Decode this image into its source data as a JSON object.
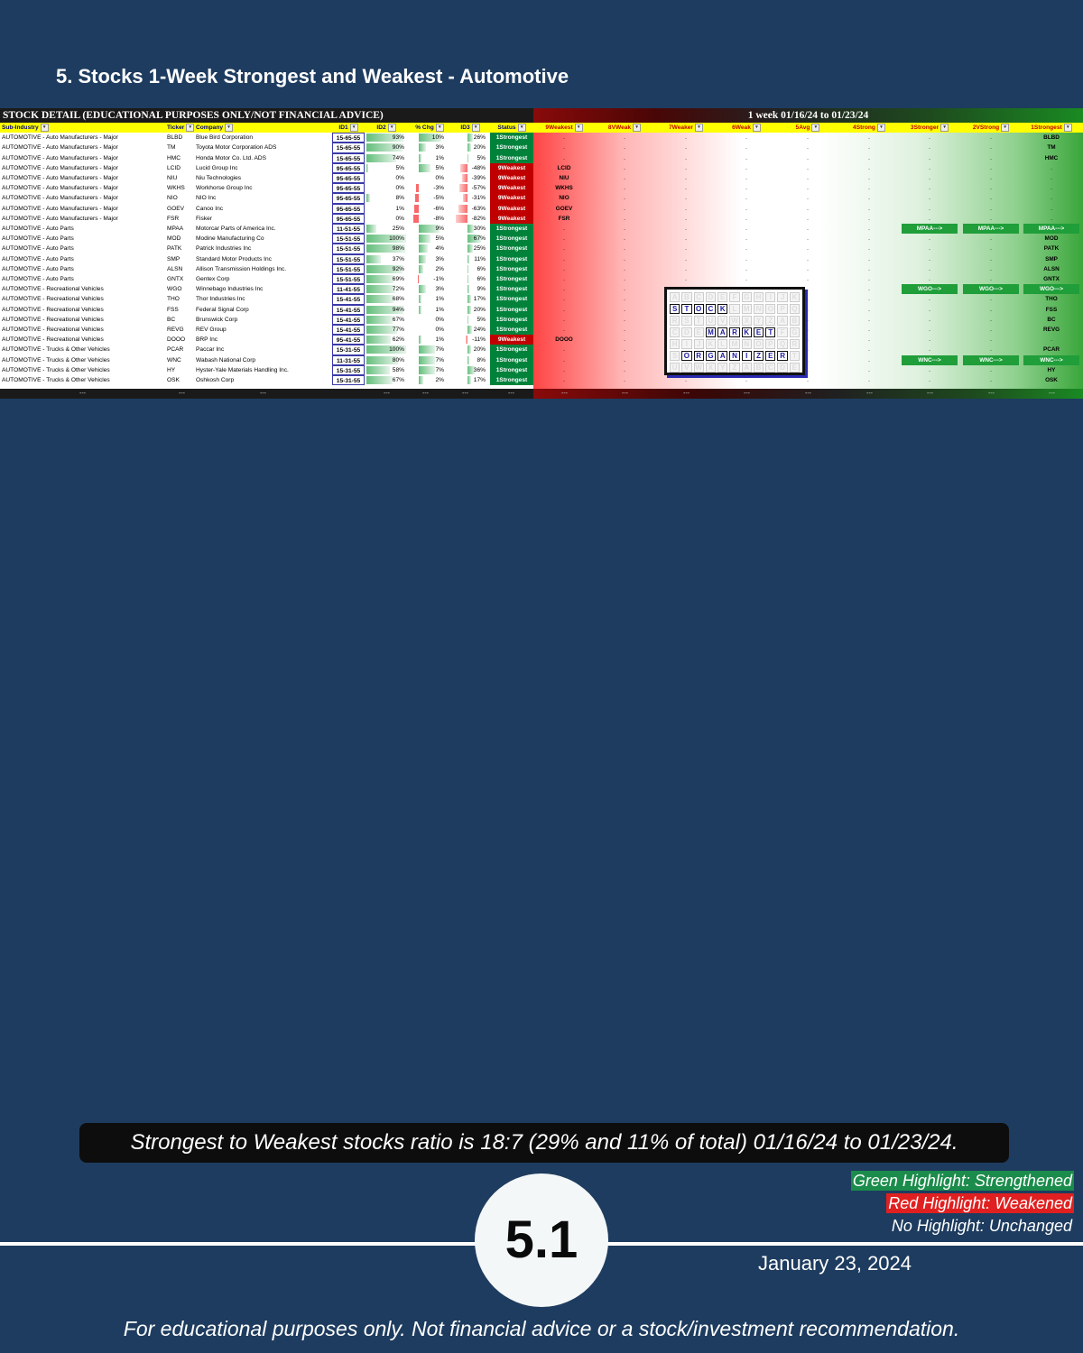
{
  "page_title": "5. Stocks 1-Week Strongest and Weakest - Automotive",
  "sheet": {
    "left_banner": "STOCK DETAIL (EDUCATIONAL PURPOSES ONLY/NOT FINANCIAL ADVICE)",
    "right_banner": "1 week 01/16/24 to 01/23/24",
    "headers": {
      "sub_industry": "Sub-Industry",
      "ticker": "Ticker",
      "company": "Company",
      "id1": "ID1",
      "id2": "ID2",
      "pct_chg": "% Chg",
      "id3": "ID3",
      "status": "Status",
      "groups": [
        "9Weakest",
        "8VWeak",
        "7Weaker",
        "6Weak",
        "5Avg",
        "4Strong",
        "3Stronger",
        "2VStrong",
        "1Strongest"
      ]
    },
    "rows": [
      {
        "sub": "AUTOMOTIVE - Auto Manufacturers - Major",
        "ticker": "BLBD",
        "company": "Blue Bird Corporation",
        "id1": "15-65-55",
        "id2": "93%",
        "id2v": 93,
        "chg": "10%",
        "chgv": 10,
        "id3": "26%",
        "id3v": 26,
        "status": "1Strongest",
        "groups": [
          ".",
          ".",
          ".",
          ".",
          ".",
          ".",
          ".",
          ".",
          "BLBD"
        ]
      },
      {
        "sub": "AUTOMOTIVE - Auto Manufacturers - Major",
        "ticker": "TM",
        "company": "Toyota Motor Corporation ADS",
        "id1": "15-65-55",
        "id2": "90%",
        "id2v": 90,
        "chg": "3%",
        "chgv": 3,
        "id3": "20%",
        "id3v": 20,
        "status": "1Strongest",
        "groups": [
          ".",
          ".",
          ".",
          ".",
          ".",
          ".",
          ".",
          ".",
          "TM"
        ]
      },
      {
        "sub": "AUTOMOTIVE - Auto Manufacturers - Major",
        "ticker": "HMC",
        "company": "Honda Motor Co. Ltd. ADS",
        "id1": "15-65-55",
        "id2": "74%",
        "id2v": 74,
        "chg": "1%",
        "chgv": 1,
        "id3": "5%",
        "id3v": 5,
        "status": "1Strongest",
        "groups": [
          ".",
          ".",
          ".",
          ".",
          ".",
          ".",
          ".",
          ".",
          "HMC"
        ]
      },
      {
        "sub": "AUTOMOTIVE - Auto Manufacturers - Major",
        "ticker": "LCID",
        "company": "Lucid Group Inc",
        "id1": "95-65-55",
        "id2": "5%",
        "id2v": 5,
        "chg": "5%",
        "chgv": 5,
        "id3": "-48%",
        "id3v": -48,
        "status": "9Weakest",
        "groups": [
          "LCID",
          ".",
          ".",
          ".",
          ".",
          ".",
          ".",
          ".",
          "."
        ]
      },
      {
        "sub": "AUTOMOTIVE - Auto Manufacturers - Major",
        "ticker": "NIU",
        "company": "Niu Technologies",
        "id1": "95-65-55",
        "id2": "0%",
        "id2v": 0,
        "chg": "0%",
        "chgv": 0,
        "id3": "-39%",
        "id3v": -39,
        "status": "9Weakest",
        "groups": [
          "NIU",
          ".",
          ".",
          ".",
          ".",
          ".",
          ".",
          ".",
          "."
        ]
      },
      {
        "sub": "AUTOMOTIVE - Auto Manufacturers - Major",
        "ticker": "WKHS",
        "company": "Workhorse Group Inc",
        "id1": "95-65-55",
        "id2": "0%",
        "id2v": 0,
        "chg": "-3%",
        "chgv": -3,
        "id3": "-57%",
        "id3v": -57,
        "status": "9Weakest",
        "groups": [
          "WKHS",
          ".",
          ".",
          ".",
          ".",
          ".",
          ".",
          ".",
          "."
        ]
      },
      {
        "sub": "AUTOMOTIVE - Auto Manufacturers - Major",
        "ticker": "NIO",
        "company": "NIO Inc",
        "id1": "95-65-55",
        "id2": "8%",
        "id2v": 8,
        "chg": "-5%",
        "chgv": -5,
        "id3": "-31%",
        "id3v": -31,
        "status": "9Weakest",
        "groups": [
          "NIO",
          ".",
          ".",
          ".",
          ".",
          ".",
          ".",
          ".",
          "."
        ]
      },
      {
        "sub": "AUTOMOTIVE - Auto Manufacturers - Major",
        "ticker": "GOEV",
        "company": "Canoo Inc",
        "id1": "95-65-55",
        "id2": "1%",
        "id2v": 1,
        "chg": "-6%",
        "chgv": -6,
        "id3": "-63%",
        "id3v": -63,
        "status": "9Weakest",
        "groups": [
          "GOEV",
          ".",
          ".",
          ".",
          ".",
          ".",
          ".",
          ".",
          "."
        ]
      },
      {
        "sub": "AUTOMOTIVE - Auto Manufacturers - Major",
        "ticker": "FSR",
        "company": "Fisker",
        "id1": "95-65-55",
        "id2": "0%",
        "id2v": 0,
        "chg": "-8%",
        "chgv": -8,
        "id3": "-82%",
        "id3v": -82,
        "status": "9Weakest",
        "groups": [
          "FSR",
          ".",
          ".",
          ".",
          ".",
          ".",
          ".",
          ".",
          "."
        ]
      },
      {
        "sub": "AUTOMOTIVE - Auto Parts",
        "ticker": "MPAA",
        "company": "Motorcar Parts of America Inc.",
        "id1": "11-51-55",
        "id2": "25%",
        "id2v": 25,
        "chg": "9%",
        "chgv": 9,
        "id3": "30%",
        "id3v": 30,
        "status": "1Strongest",
        "groups": [
          ".",
          ".",
          ".",
          ".",
          ".",
          ".",
          "MPAA--->",
          "MPAA--->",
          "MPAA--->"
        ]
      },
      {
        "sub": "AUTOMOTIVE - Auto Parts",
        "ticker": "MOD",
        "company": "Modine Manufacturing Co",
        "id1": "15-51-55",
        "id2": "100%",
        "id2v": 100,
        "chg": "5%",
        "chgv": 5,
        "id3": "67%",
        "id3v": 67,
        "status": "1Strongest",
        "groups": [
          ".",
          ".",
          ".",
          ".",
          ".",
          ".",
          ".",
          ".",
          "MOD"
        ]
      },
      {
        "sub": "AUTOMOTIVE - Auto Parts",
        "ticker": "PATK",
        "company": "Patrick Industries Inc",
        "id1": "15-51-55",
        "id2": "98%",
        "id2v": 98,
        "chg": "4%",
        "chgv": 4,
        "id3": "25%",
        "id3v": 25,
        "status": "1Strongest",
        "groups": [
          ".",
          ".",
          ".",
          ".",
          ".",
          ".",
          ".",
          ".",
          "PATK"
        ]
      },
      {
        "sub": "AUTOMOTIVE - Auto Parts",
        "ticker": "SMP",
        "company": "Standard Motor Products Inc",
        "id1": "15-51-55",
        "id2": "37%",
        "id2v": 37,
        "chg": "3%",
        "chgv": 3,
        "id3": "11%",
        "id3v": 11,
        "status": "1Strongest",
        "groups": [
          ".",
          ".",
          ".",
          ".",
          ".",
          ".",
          ".",
          ".",
          "SMP"
        ]
      },
      {
        "sub": "AUTOMOTIVE - Auto Parts",
        "ticker": "ALSN",
        "company": "Allison Transmission Holdings Inc.",
        "id1": "15-51-55",
        "id2": "92%",
        "id2v": 92,
        "chg": "2%",
        "chgv": 2,
        "id3": "6%",
        "id3v": 6,
        "status": "1Strongest",
        "groups": [
          ".",
          ".",
          ".",
          ".",
          ".",
          ".",
          ".",
          ".",
          "ALSN"
        ]
      },
      {
        "sub": "AUTOMOTIVE - Auto Parts",
        "ticker": "GNTX",
        "company": "Gentex Corp",
        "id1": "15-51-55",
        "id2": "69%",
        "id2v": 69,
        "chg": "-1%",
        "chgv": -1,
        "id3": "6%",
        "id3v": 6,
        "status": "1Strongest",
        "groups": [
          ".",
          ".",
          ".",
          ".",
          ".",
          ".",
          ".",
          ".",
          "GNTX"
        ]
      },
      {
        "sub": "AUTOMOTIVE - Recreational Vehicles",
        "ticker": "WGO",
        "company": "Winnebago Industries Inc",
        "id1": "11-41-55",
        "id2": "72%",
        "id2v": 72,
        "chg": "3%",
        "chgv": 3,
        "id3": "9%",
        "id3v": 9,
        "status": "1Strongest",
        "groups": [
          ".",
          ".",
          ".",
          ".",
          ".",
          ".",
          "WGO--->",
          "WGO--->",
          "WGO--->"
        ]
      },
      {
        "sub": "AUTOMOTIVE - Recreational Vehicles",
        "ticker": "THO",
        "company": "Thor Industries Inc",
        "id1": "15-41-55",
        "id2": "68%",
        "id2v": 68,
        "chg": "1%",
        "chgv": 1,
        "id3": "17%",
        "id3v": 17,
        "status": "1Strongest",
        "groups": [
          ".",
          ".",
          ".",
          ".",
          ".",
          ".",
          ".",
          ".",
          "THO"
        ]
      },
      {
        "sub": "AUTOMOTIVE - Recreational Vehicles",
        "ticker": "FSS",
        "company": "Federal Signal Corp",
        "id1": "15-41-55",
        "id2": "94%",
        "id2v": 94,
        "chg": "1%",
        "chgv": 1,
        "id3": "20%",
        "id3v": 20,
        "status": "1Strongest",
        "groups": [
          ".",
          ".",
          ".",
          ".",
          ".",
          ".",
          ".",
          ".",
          "FSS"
        ]
      },
      {
        "sub": "AUTOMOTIVE - Recreational Vehicles",
        "ticker": "BC",
        "company": "Brunswick Corp",
        "id1": "15-41-55",
        "id2": "67%",
        "id2v": 67,
        "chg": "0%",
        "chgv": 0,
        "id3": "5%",
        "id3v": 5,
        "status": "1Strongest",
        "groups": [
          ".",
          ".",
          ".",
          ".",
          ".",
          ".",
          ".",
          ".",
          "BC"
        ]
      },
      {
        "sub": "AUTOMOTIVE - Recreational Vehicles",
        "ticker": "REVG",
        "company": "REV Group",
        "id1": "15-41-55",
        "id2": "77%",
        "id2v": 77,
        "chg": "0%",
        "chgv": 0,
        "id3": "24%",
        "id3v": 24,
        "status": "1Strongest",
        "groups": [
          ".",
          ".",
          ".",
          ".",
          ".",
          ".",
          ".",
          ".",
          "REVG"
        ]
      },
      {
        "sub": "AUTOMOTIVE - Recreational Vehicles",
        "ticker": "DOOO",
        "company": "BRP Inc",
        "id1": "95-41-55",
        "id2": "62%",
        "id2v": 62,
        "chg": "1%",
        "chgv": 1,
        "id3": "-11%",
        "id3v": -11,
        "status": "9Weakest",
        "groups": [
          "DOOO",
          ".",
          ".",
          ".",
          ".",
          ".",
          ".",
          ".",
          "."
        ]
      },
      {
        "sub": "AUTOMOTIVE - Trucks & Other Vehicles",
        "ticker": "PCAR",
        "company": "Paccar Inc",
        "id1": "15-31-55",
        "id2": "100%",
        "id2v": 100,
        "chg": "7%",
        "chgv": 7,
        "id3": "20%",
        "id3v": 20,
        "status": "1Strongest",
        "groups": [
          ".",
          ".",
          ".",
          ".",
          ".",
          ".",
          ".",
          ".",
          "PCAR"
        ]
      },
      {
        "sub": "AUTOMOTIVE - Trucks & Other Vehicles",
        "ticker": "WNC",
        "company": "Wabash National Corp",
        "id1": "11-31-55",
        "id2": "80%",
        "id2v": 80,
        "chg": "7%",
        "chgv": 7,
        "id3": "8%",
        "id3v": 8,
        "status": "1Strongest",
        "groups": [
          ".",
          ".",
          ".",
          ".",
          ".",
          ".",
          "WNC--->",
          "WNC--->",
          "WNC--->"
        ]
      },
      {
        "sub": "AUTOMOTIVE - Trucks & Other Vehicles",
        "ticker": "HY",
        "company": "Hyster-Yale Materials Handling Inc.",
        "id1": "15-31-55",
        "id2": "58%",
        "id2v": 58,
        "chg": "7%",
        "chgv": 7,
        "id3": "36%",
        "id3v": 36,
        "status": "1Strongest",
        "groups": [
          ".",
          ".",
          ".",
          ".",
          ".",
          ".",
          ".",
          ".",
          "HY"
        ]
      },
      {
        "sub": "AUTOMOTIVE - Trucks & Other Vehicles",
        "ticker": "OSK",
        "company": "Oshkosh Corp",
        "id1": "15-31-55",
        "id2": "67%",
        "id2v": 67,
        "chg": "2%",
        "chgv": 2,
        "id3": "17%",
        "id3v": 17,
        "status": "1Strongest",
        "groups": [
          ".",
          ".",
          ".",
          ".",
          ".",
          ".",
          ".",
          ".",
          "OSK"
        ]
      }
    ],
    "footer_dashes": "---"
  },
  "logo": {
    "words": [
      "STOCK",
      "MARKET",
      "ORGANIZER"
    ],
    "filler": "ABCDEFGHIJKLMNOPQRSTUVWXYZABCDEFGHIJKLMNOPQRSTUVWXYZABCDEFGHIJKLMNOPQRSTUVWXYZ"
  },
  "ratio_text": "Strongest to Weakest stocks ratio is 18:7 (29% and 11% of total) 01/16/24 to 01/23/24.",
  "legend": {
    "green": "Green Highlight: Strengthened",
    "red": "Red Highlight: Weakened",
    "none": "No Highlight: Unchanged"
  },
  "page_number": "5.1",
  "date": "January 23, 2024",
  "disclaimer": "For educational purposes only. Not financial advice or a stock/investment recommendation.",
  "colors": {
    "background": "#1e3c5f",
    "strong_green": "#00823b",
    "weak_red": "#c00000",
    "header_yellow": "#ffff00"
  }
}
